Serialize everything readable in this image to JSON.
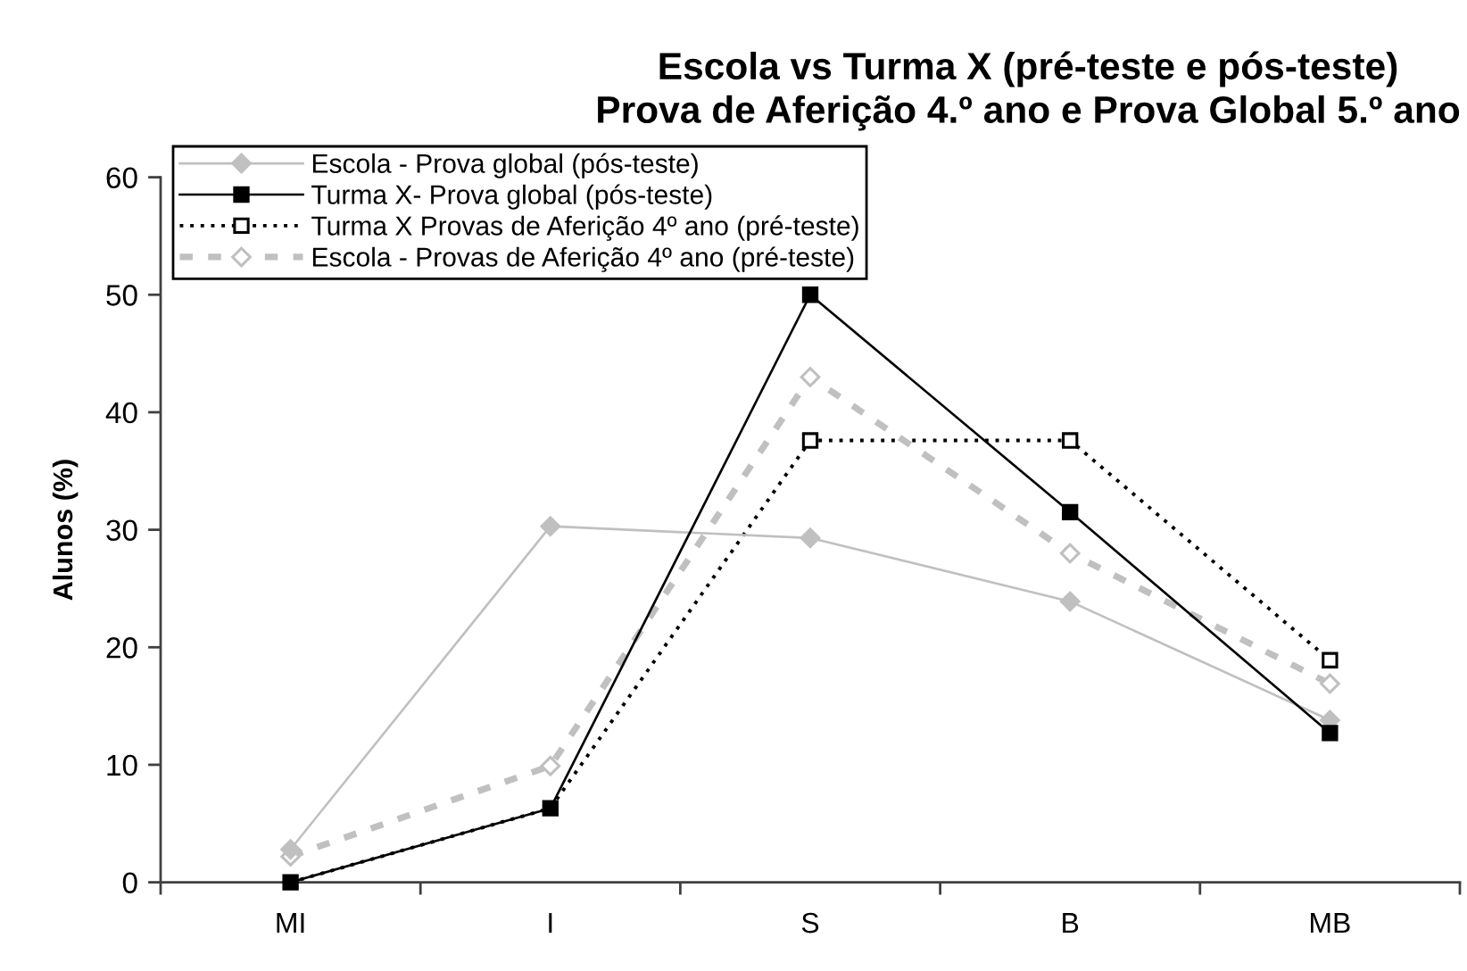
{
  "chart_data": {
    "type": "line",
    "title": "Escola vs Turma X (pré-teste e pós-teste)\nProva de Aferição 4.º ano e Prova Global 5.º ano",
    "ylabel": "Alunos (%)",
    "categories": [
      "MI",
      "I",
      "S",
      "B",
      "MB"
    ],
    "series": [
      {
        "name": "Escola - Prova global (pós-teste)",
        "color": "#c0c0c0",
        "marker": "diamond",
        "line_style": "solid",
        "values": [
          2.8,
          30.3,
          29.3,
          23.9,
          13.8
        ]
      },
      {
        "name": "Turma X- Prova global (pós-teste)",
        "color": "#000000",
        "marker": "square",
        "line_style": "solid",
        "values": [
          0,
          6.3,
          50,
          31.5,
          12.7
        ]
      },
      {
        "name": "Turma X Provas de Aferição 4º ano (pré-teste)",
        "color": "#000000",
        "marker": "square",
        "line_style": "dotted",
        "values": [
          0,
          6.3,
          37.6,
          37.6,
          18.9
        ]
      },
      {
        "name": "Escola - Provas de Aferição 4º ano (pré-teste)",
        "color": "#c0c0c0",
        "marker": "diamond",
        "line_style": "dashed",
        "values": [
          2.2,
          9.9,
          43.0,
          28.0,
          16.9
        ]
      }
    ],
    "ylim": [
      0,
      60
    ],
    "yticks": [
      0,
      10,
      20,
      30,
      40,
      50,
      60
    ],
    "grid": false,
    "legend": "top left"
  }
}
